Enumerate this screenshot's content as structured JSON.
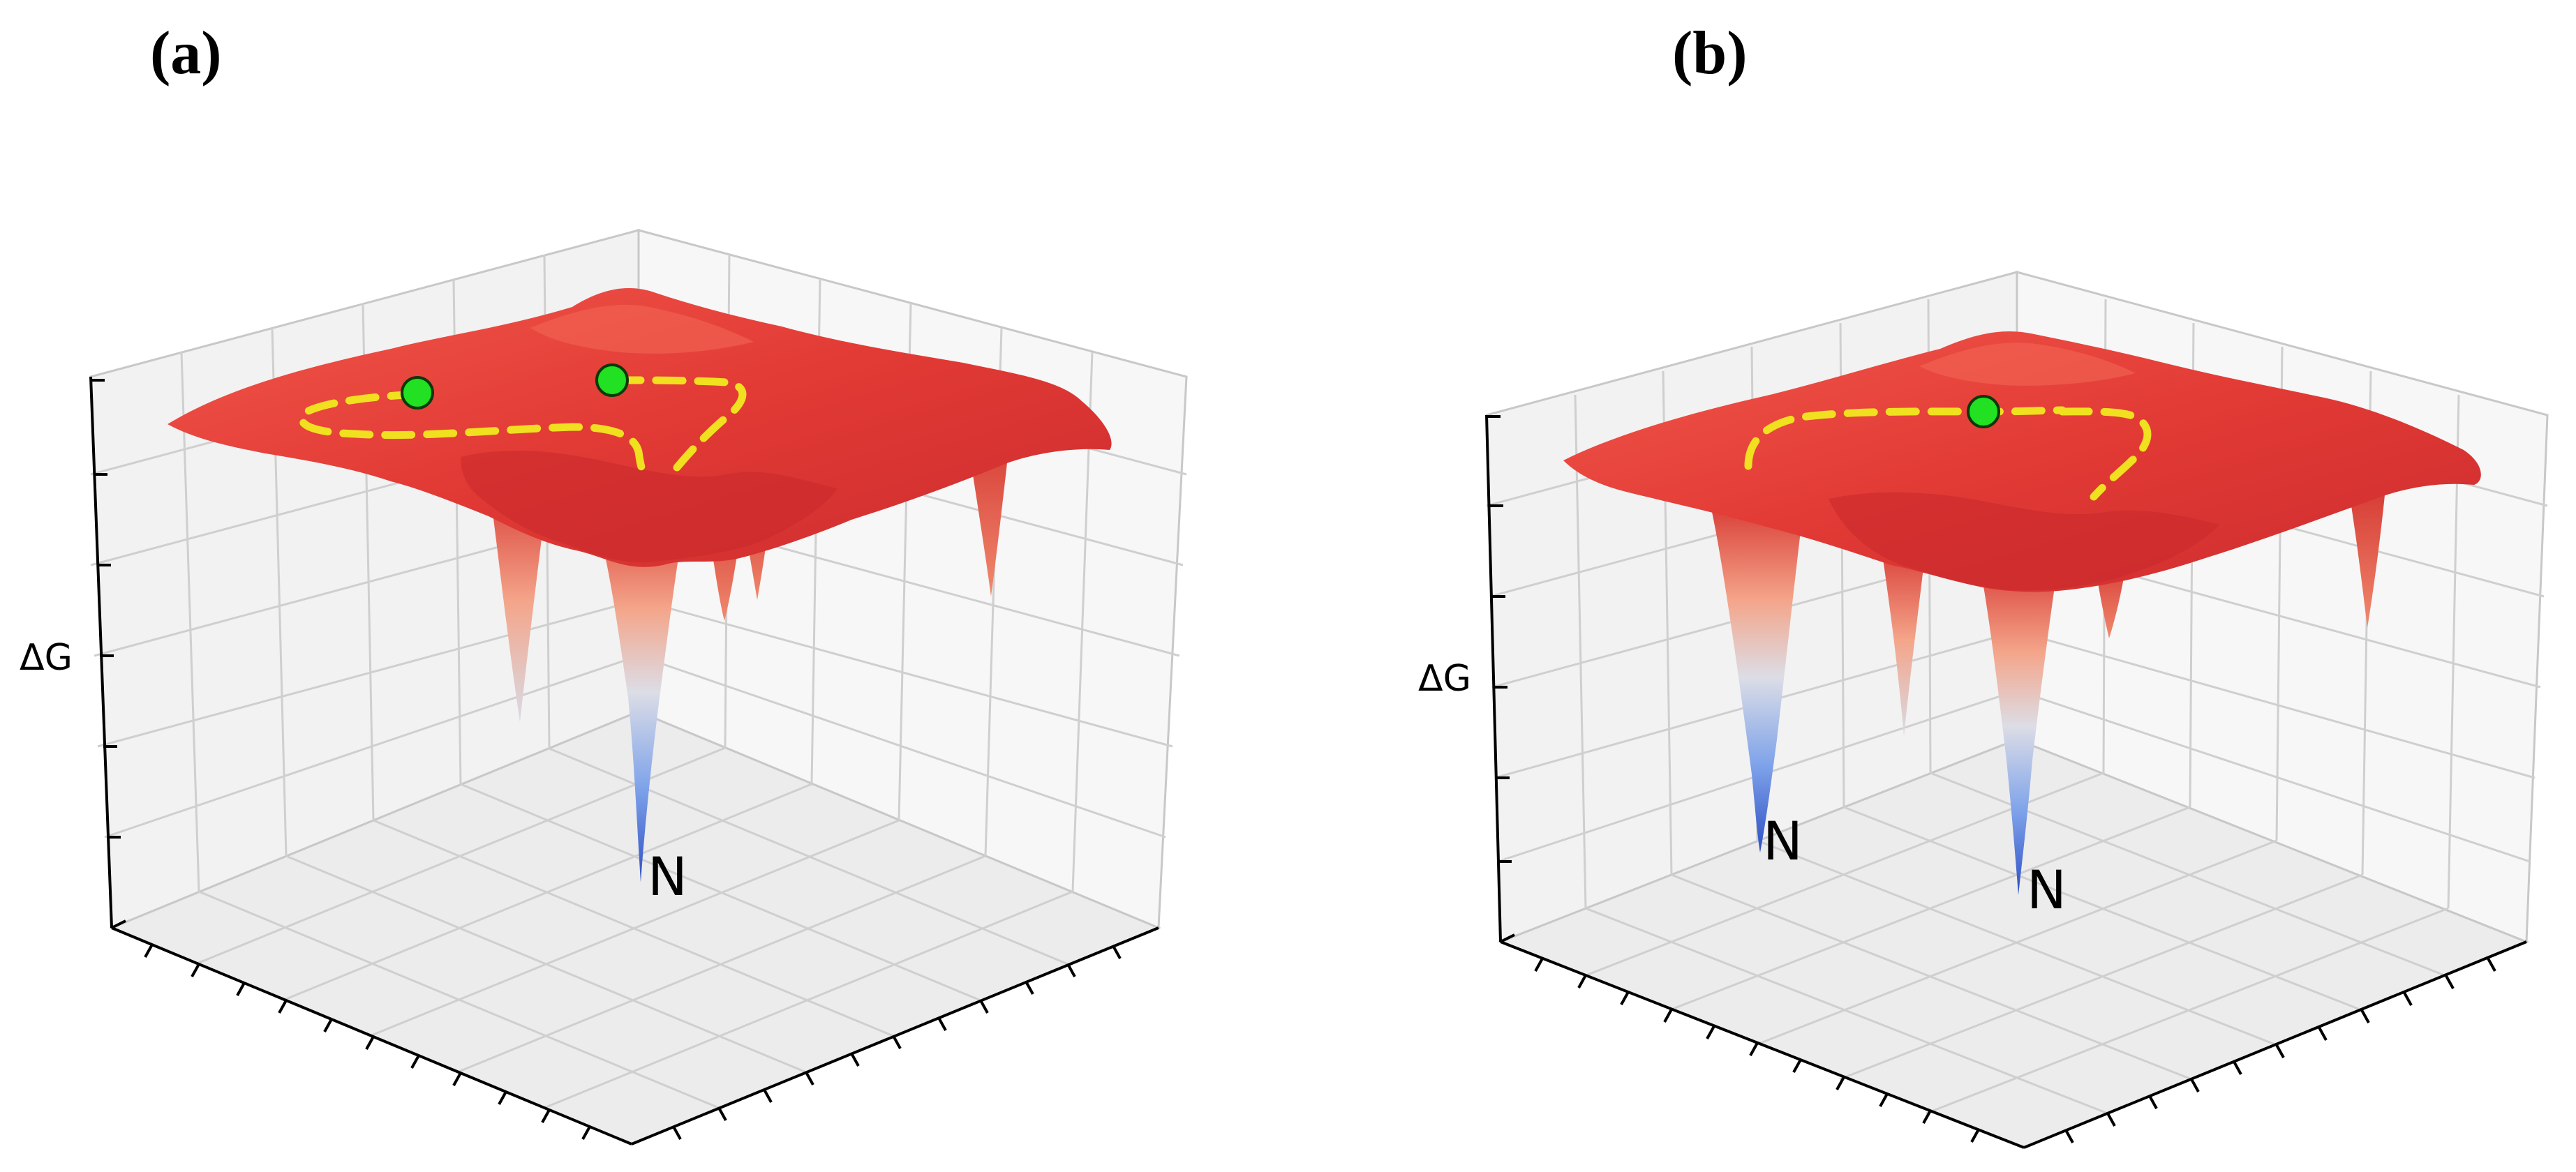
{
  "panels": [
    {
      "label": "(a)",
      "zlabel": "ΔG",
      "well_labels": [
        "N"
      ],
      "green_dots": 2
    },
    {
      "label": "(b)",
      "zlabel": "ΔG",
      "well_labels": [
        "N",
        "N"
      ],
      "green_dots": 1
    }
  ],
  "colors": {
    "surface_top": "#e23a35",
    "surface_dark": "#c0262a",
    "surface_light": "#f0584a",
    "well_mid": "#f4a58a",
    "well_pale": "#dcdde6",
    "well_blue": "#6a96e6",
    "well_deep": "#2e4fc4",
    "path": "#f0e020",
    "dot": "#22e022"
  },
  "icons": {
    "dot": "green-circle",
    "path": "yellow-dashed-line"
  }
}
